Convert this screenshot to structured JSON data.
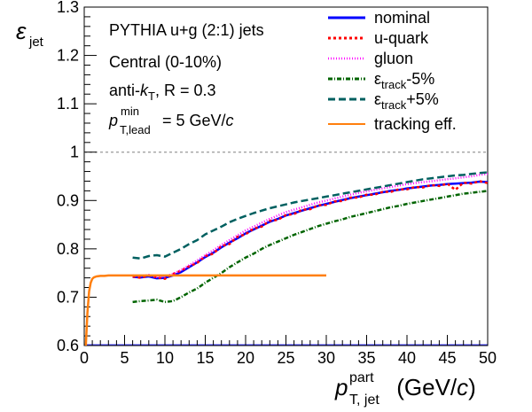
{
  "chart_data": {
    "type": "line",
    "ylabel": "ε",
    "ylabel_sub": "jet",
    "xlabel": {
      "p": "p",
      "sup": "part",
      "sub": "T, jet",
      "unit_open": " (GeV/",
      "unit_c": "c",
      "unit_close": ")"
    },
    "xlim": [
      0,
      50
    ],
    "ylim": [
      0.6,
      1.3
    ],
    "xticks": [
      "0",
      "5",
      "10",
      "15",
      "20",
      "25",
      "30",
      "35",
      "40",
      "45",
      "50"
    ],
    "yticks": [
      "0.6",
      "0.7",
      "0.8",
      "0.9",
      "1",
      "1.1",
      "1.2",
      "1.3"
    ],
    "annotations": {
      "line1": "PYTHIA u+g (2:1) jets",
      "line2": "Central (0-10%)",
      "line3_a": "anti-",
      "line3_k": "k",
      "line3_sub": "T",
      "line3_b": ", R = 0.3",
      "line4_p": "p",
      "line4_sup": "min",
      "line4_sub": "T,lead",
      "line4_b": " = 5 GeV/",
      "line4_c": "c"
    },
    "reference_line": {
      "y": 1.0,
      "style": "dashed",
      "color": "#999999"
    },
    "bottom_line": {
      "y": 0.6,
      "color": "#3c3cff"
    },
    "series": [
      {
        "name": "nominal",
        "color": "#0000ff",
        "dash": "",
        "x": [
          6,
          7,
          8,
          9,
          10,
          11,
          12,
          13,
          14,
          15,
          16,
          17,
          18,
          19,
          20,
          21,
          22,
          23,
          24,
          25,
          26,
          27,
          28,
          29,
          30,
          31,
          32,
          33,
          34,
          35,
          36,
          37,
          38,
          39,
          40,
          41,
          42,
          43,
          44,
          45,
          46,
          47,
          48,
          49,
          50
        ],
        "y": [
          0.742,
          0.741,
          0.743,
          0.739,
          0.74,
          0.745,
          0.752,
          0.762,
          0.772,
          0.783,
          0.792,
          0.803,
          0.813,
          0.822,
          0.832,
          0.84,
          0.848,
          0.856,
          0.862,
          0.869,
          0.874,
          0.879,
          0.884,
          0.889,
          0.893,
          0.897,
          0.901,
          0.905,
          0.908,
          0.911,
          0.914,
          0.917,
          0.92,
          0.922,
          0.925,
          0.927,
          0.929,
          0.931,
          0.932,
          0.934,
          0.935,
          0.936,
          0.937,
          0.939,
          0.938
        ]
      },
      {
        "name": "u-quark",
        "color": "#ff0000",
        "dash": "3,3",
        "x": [
          6,
          7,
          8,
          9,
          10,
          11,
          12,
          13,
          14,
          15,
          16,
          17,
          18,
          19,
          20,
          21,
          22,
          23,
          24,
          25,
          26,
          27,
          28,
          29,
          30,
          31,
          32,
          33,
          34,
          35,
          36,
          37,
          38,
          39,
          40,
          41,
          42,
          43,
          44,
          45,
          46,
          47,
          48,
          49,
          50
        ],
        "y": [
          0.743,
          0.74,
          0.745,
          0.741,
          0.738,
          0.748,
          0.755,
          0.764,
          0.771,
          0.785,
          0.79,
          0.806,
          0.81,
          0.825,
          0.83,
          0.842,
          0.846,
          0.858,
          0.86,
          0.87,
          0.872,
          0.881,
          0.882,
          0.89,
          0.891,
          0.898,
          0.899,
          0.906,
          0.906,
          0.912,
          0.912,
          0.918,
          0.918,
          0.923,
          0.923,
          0.928,
          0.927,
          0.932,
          0.93,
          0.935,
          0.922,
          0.937,
          0.935,
          0.94,
          0.936
        ]
      },
      {
        "name": "gluon",
        "color": "#ff00ff",
        "dash": "1,2",
        "x": [
          6,
          7,
          8,
          9,
          10,
          11,
          12,
          13,
          14,
          15,
          16,
          17,
          18,
          19,
          20,
          21,
          22,
          23,
          24,
          25,
          26,
          27,
          28,
          29,
          30,
          31,
          32,
          33,
          34,
          35,
          36,
          37,
          38,
          39,
          40,
          41,
          42,
          43,
          44,
          45,
          46,
          47,
          48,
          49,
          50
        ],
        "y": [
          0.745,
          0.744,
          0.746,
          0.742,
          0.743,
          0.748,
          0.756,
          0.766,
          0.776,
          0.787,
          0.797,
          0.808,
          0.818,
          0.828,
          0.838,
          0.846,
          0.854,
          0.862,
          0.869,
          0.876,
          0.881,
          0.886,
          0.891,
          0.896,
          0.9,
          0.904,
          0.908,
          0.912,
          0.916,
          0.919,
          0.922,
          0.925,
          0.928,
          0.931,
          0.934,
          0.936,
          0.938,
          0.94,
          0.942,
          0.944,
          0.946,
          0.948,
          0.95,
          0.953,
          0.955
        ]
      },
      {
        "name": "ε_track-5%",
        "color": "#006400",
        "dash": "5,2,1,2",
        "x": [
          6,
          7,
          8,
          9,
          10,
          11,
          12,
          13,
          14,
          15,
          16,
          17,
          18,
          19,
          20,
          21,
          22,
          23,
          24,
          25,
          26,
          27,
          28,
          29,
          30,
          31,
          32,
          33,
          34,
          35,
          36,
          37,
          38,
          39,
          40,
          41,
          42,
          43,
          44,
          45,
          46,
          47,
          48,
          49,
          50
        ],
        "y": [
          0.69,
          0.692,
          0.693,
          0.695,
          0.69,
          0.692,
          0.7,
          0.71,
          0.718,
          0.73,
          0.74,
          0.75,
          0.762,
          0.772,
          0.782,
          0.79,
          0.8,
          0.808,
          0.815,
          0.822,
          0.829,
          0.835,
          0.841,
          0.847,
          0.852,
          0.857,
          0.861,
          0.866,
          0.87,
          0.874,
          0.878,
          0.882,
          0.886,
          0.889,
          0.893,
          0.896,
          0.899,
          0.902,
          0.905,
          0.908,
          0.911,
          0.914,
          0.916,
          0.918,
          0.92
        ]
      },
      {
        "name": "ε_track+5%",
        "color": "#006060",
        "dash": "8,4",
        "x": [
          6,
          7,
          8,
          9,
          10,
          11,
          12,
          13,
          14,
          15,
          16,
          17,
          18,
          19,
          20,
          21,
          22,
          23,
          24,
          25,
          26,
          27,
          28,
          29,
          30,
          31,
          32,
          33,
          34,
          35,
          36,
          37,
          38,
          39,
          40,
          41,
          42,
          43,
          44,
          45,
          46,
          47,
          48,
          49,
          50
        ],
        "y": [
          0.782,
          0.78,
          0.785,
          0.787,
          0.784,
          0.792,
          0.8,
          0.81,
          0.818,
          0.83,
          0.838,
          0.846,
          0.855,
          0.862,
          0.868,
          0.874,
          0.879,
          0.884,
          0.888,
          0.892,
          0.896,
          0.899,
          0.902,
          0.905,
          0.908,
          0.911,
          0.914,
          0.917,
          0.92,
          0.923,
          0.926,
          0.929,
          0.932,
          0.935,
          0.938,
          0.941,
          0.944,
          0.946,
          0.948,
          0.95,
          0.952,
          0.953,
          0.955,
          0.957,
          0.958
        ]
      },
      {
        "name": "tracking eff.",
        "color": "#ff7f0e",
        "dash": "",
        "x": [
          0.2,
          0.4,
          0.6,
          0.8,
          1.0,
          1.2,
          1.5,
          2.0,
          2.5,
          3.0,
          4.0,
          5.0,
          10.0,
          20.0,
          30.0
        ],
        "y": [
          0.6,
          0.668,
          0.712,
          0.73,
          0.738,
          0.741,
          0.743,
          0.744,
          0.744,
          0.745,
          0.745,
          0.745,
          0.745,
          0.745,
          0.745
        ]
      }
    ],
    "legend": {
      "position": "top-right",
      "labels": [
        "nominal",
        "u-quark",
        "gluon",
        "",
        "",
        "tracking eff."
      ],
      "track_minus": {
        "eps": "ε",
        "sub": "track",
        "tail": "-5%"
      },
      "track_plus": {
        "eps": "ε",
        "sub": "track",
        "tail": "+5%"
      }
    }
  }
}
